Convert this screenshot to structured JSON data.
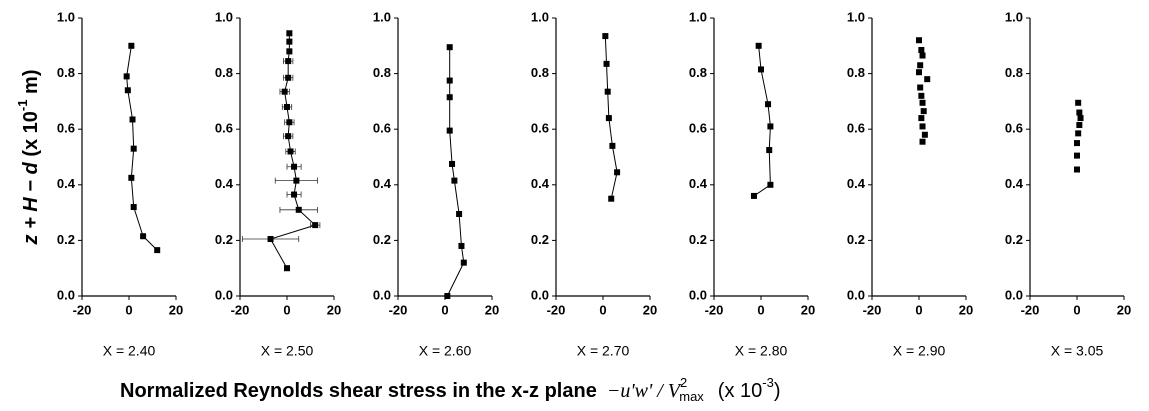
{
  "ylabel_parts": [
    "z + H − d",
    " (x 10",
    "-1",
    " m)"
  ],
  "xlabel_parts": [
    "Normalized Reynolds shear stress in the x-z plane",
    "−u'w' / V",
    "2",
    "max",
    "(x 10",
    "-3",
    ")"
  ],
  "chart_data": [
    {
      "type": "line",
      "title": "X = 2.40",
      "xlim": [
        -20,
        20
      ],
      "xticks": [
        -20,
        0,
        20
      ],
      "ylim": [
        0,
        1
      ],
      "yticks": [
        {
          "value": 0,
          "label": "0.0"
        },
        {
          "value": 0.2,
          "label": "0.2"
        },
        {
          "value": 0.4,
          "label": "0.4"
        },
        {
          "value": 0.6,
          "label": "0.6"
        },
        {
          "value": 0.8,
          "label": "0.8"
        },
        {
          "value": 1,
          "label": "1.0"
        }
      ],
      "color": "#000000",
      "x": [
        1,
        -1,
        -0.5,
        1.5,
        2,
        1,
        2,
        6,
        12
      ],
      "y": [
        0.9,
        0.79,
        0.74,
        0.635,
        0.53,
        0.425,
        0.32,
        0.215,
        0.165
      ]
    },
    {
      "type": "line",
      "title": "X = 2.50",
      "xlim": [
        -20,
        20
      ],
      "xticks": [
        -20,
        0,
        20
      ],
      "ylim": [
        0,
        1
      ],
      "yticks": [
        {
          "value": 0,
          "label": "0.0"
        },
        {
          "value": 0.2,
          "label": "0.2"
        },
        {
          "value": 0.4,
          "label": "0.4"
        },
        {
          "value": 0.6,
          "label": "0.6"
        },
        {
          "value": 0.8,
          "label": "0.8"
        },
        {
          "value": 1,
          "label": "1.0"
        }
      ],
      "color": "#000000",
      "x": [
        1,
        1,
        1,
        0.5,
        0.5,
        -1,
        0,
        1,
        0.5,
        1.5,
        3,
        4,
        3,
        5,
        12,
        -7,
        0
      ],
      "y": [
        0.945,
        0.915,
        0.88,
        0.845,
        0.785,
        0.735,
        0.68,
        0.625,
        0.575,
        0.52,
        0.465,
        0.415,
        0.365,
        0.31,
        0.255,
        0.205,
        0.1
      ],
      "x_errors": [
        1,
        1,
        1,
        2,
        2,
        2,
        2,
        2,
        2,
        2,
        3,
        9,
        3,
        8,
        2,
        12,
        1
      ]
    },
    {
      "type": "line",
      "title": "X = 2.60",
      "xlim": [
        -20,
        20
      ],
      "xticks": [
        -20,
        0,
        20
      ],
      "ylim": [
        0,
        1
      ],
      "yticks": [
        {
          "value": 0,
          "label": "0.0"
        },
        {
          "value": 0.2,
          "label": "0.2"
        },
        {
          "value": 0.4,
          "label": "0.4"
        },
        {
          "value": 0.6,
          "label": "0.6"
        },
        {
          "value": 0.8,
          "label": "0.8"
        },
        {
          "value": 1,
          "label": "1.0"
        }
      ],
      "color": "#000000",
      "x": [
        2,
        2,
        2,
        2,
        3,
        4,
        6,
        7,
        8,
        1
      ],
      "y": [
        0.895,
        0.775,
        0.715,
        0.595,
        0.475,
        0.415,
        0.295,
        0.18,
        0.12,
        0.0
      ]
    },
    {
      "type": "line",
      "title": "X = 2.70",
      "xlim": [
        -20,
        20
      ],
      "xticks": [
        -20,
        0,
        20
      ],
      "ylim": [
        0,
        1
      ],
      "yticks": [
        {
          "value": 0,
          "label": "0.0"
        },
        {
          "value": 0.2,
          "label": "0.2"
        },
        {
          "value": 0.4,
          "label": "0.4"
        },
        {
          "value": 0.6,
          "label": "0.6"
        },
        {
          "value": 0.8,
          "label": "0.8"
        },
        {
          "value": 1,
          "label": "1.0"
        }
      ],
      "color": "#000000",
      "x": [
        1,
        1.5,
        2,
        2.5,
        4,
        6,
        3.5
      ],
      "y": [
        0.935,
        0.835,
        0.735,
        0.64,
        0.54,
        0.445,
        0.35
      ]
    },
    {
      "type": "line",
      "title": "X = 2.80",
      "xlim": [
        -20,
        20
      ],
      "xticks": [
        -20,
        0,
        20
      ],
      "ylim": [
        0,
        1
      ],
      "yticks": [
        {
          "value": 0,
          "label": "0.0"
        },
        {
          "value": 0.2,
          "label": "0.2"
        },
        {
          "value": 0.4,
          "label": "0.4"
        },
        {
          "value": 0.6,
          "label": "0.6"
        },
        {
          "value": 0.8,
          "label": "0.8"
        },
        {
          "value": 1,
          "label": "1.0"
        }
      ],
      "color": "#000000",
      "x": [
        -1,
        0,
        3,
        4,
        3.5,
        4,
        -3
      ],
      "y": [
        0.9,
        0.815,
        0.69,
        0.61,
        0.525,
        0.4,
        0.36
      ]
    },
    {
      "type": "scatter",
      "title": "X = 2.90",
      "xlim": [
        -20,
        20
      ],
      "xticks": [
        -20,
        0,
        20
      ],
      "ylim": [
        0,
        1
      ],
      "yticks": [
        {
          "value": 0,
          "label": "0.0"
        },
        {
          "value": 0.2,
          "label": "0.2"
        },
        {
          "value": 0.4,
          "label": "0.4"
        },
        {
          "value": 0.6,
          "label": "0.6"
        },
        {
          "value": 0.8,
          "label": "0.8"
        },
        {
          "value": 1,
          "label": "1.0"
        }
      ],
      "color": "#000000",
      "x": [
        0,
        1,
        1.5,
        0.5,
        0,
        3.5,
        0.5,
        1,
        1.5,
        2,
        1,
        1.5,
        2.5,
        1.5
      ],
      "y": [
        0.92,
        0.885,
        0.865,
        0.83,
        0.805,
        0.78,
        0.75,
        0.72,
        0.695,
        0.665,
        0.64,
        0.61,
        0.58,
        0.555
      ]
    },
    {
      "type": "scatter",
      "title": "X = 3.05",
      "xlim": [
        -20,
        20
      ],
      "xticks": [
        -20,
        0,
        20
      ],
      "ylim": [
        0,
        1
      ],
      "yticks": [
        {
          "value": 0,
          "label": "0.0"
        },
        {
          "value": 0.2,
          "label": "0.2"
        },
        {
          "value": 0.4,
          "label": "0.4"
        },
        {
          "value": 0.6,
          "label": "0.6"
        },
        {
          "value": 0.8,
          "label": "0.8"
        },
        {
          "value": 1,
          "label": "1.0"
        }
      ],
      "color": "#000000",
      "x": [
        0.5,
        1,
        1.5,
        1,
        0.5,
        0,
        0,
        0
      ],
      "y": [
        0.695,
        0.66,
        0.64,
        0.615,
        0.585,
        0.55,
        0.505,
        0.455
      ]
    }
  ]
}
